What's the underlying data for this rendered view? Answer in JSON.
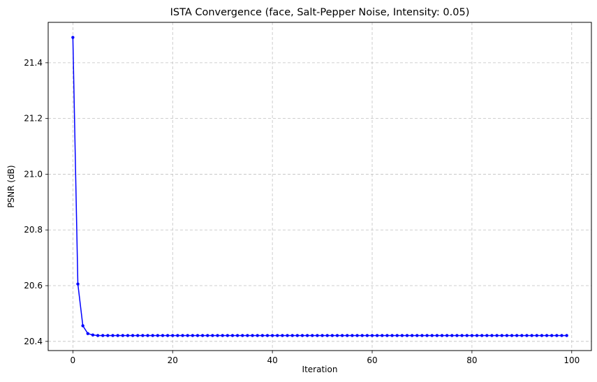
{
  "chart_data": {
    "type": "line",
    "title": "ISTA Convergence (face, Salt-Pepper Noise, Intensity: 0.05)",
    "xlabel": "Iteration",
    "ylabel": "PSNR (dB)",
    "xlim": [
      -4.95,
      103.95
    ],
    "ylim": [
      20.367,
      21.545
    ],
    "xticks": [
      0,
      20,
      40,
      60,
      80,
      100
    ],
    "yticks": [
      20.4,
      20.6,
      20.8,
      21.0,
      21.2,
      21.4
    ],
    "xtick_labels": [
      "0",
      "20",
      "40",
      "60",
      "80",
      "100"
    ],
    "ytick_labels": [
      "20.4",
      "20.6",
      "20.8",
      "21.0",
      "21.2",
      "21.4"
    ],
    "grid": true,
    "legend": "none",
    "series": [
      {
        "color": "#0000ff",
        "marker": "circle",
        "x_start": 0,
        "x_end": 99,
        "y_head": [
          21.491,
          20.606,
          20.456,
          20.428,
          20.423
        ],
        "y_tail": 20.421
      }
    ]
  }
}
